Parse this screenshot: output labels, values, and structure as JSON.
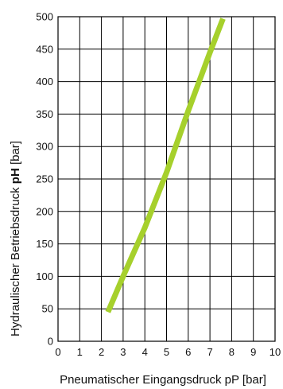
{
  "chart_data": {
    "type": "line",
    "title": "",
    "xlabel": "Pneumatischer Eingangsdruck pP [bar]",
    "ylabel_prefix": "Hydraulischer Betriebsdruck ",
    "ylabel_symbol": "pH",
    "ylabel_suffix": " [bar]",
    "xlim": [
      0,
      10
    ],
    "ylim": [
      0,
      500
    ],
    "xticks": [
      0,
      1,
      2,
      3,
      4,
      5,
      6,
      7,
      8,
      9,
      10
    ],
    "yticks": [
      0,
      50,
      100,
      150,
      200,
      250,
      300,
      350,
      400,
      450,
      500
    ],
    "grid": true,
    "series": [
      {
        "x": [
          2.3,
          3.0,
          4.0,
          5.0,
          6.0,
          7.0,
          7.6
        ],
        "y": [
          45,
          100,
          175,
          260,
          355,
          445,
          497
        ],
        "color": "#a6d02c"
      }
    ]
  }
}
